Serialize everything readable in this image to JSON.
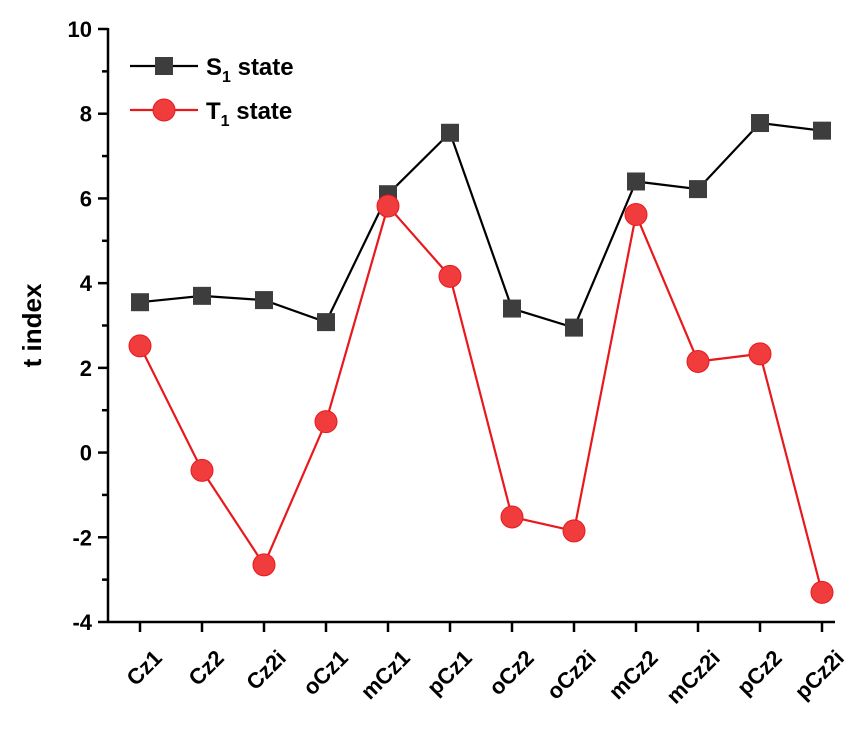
{
  "chart_data": {
    "type": "line",
    "title": "",
    "xlabel": "",
    "ylabel": "t index",
    "ylim": [
      -4,
      10
    ],
    "yticks": [
      "-4",
      "-2",
      "0",
      "2",
      "4",
      "6",
      "8",
      "10"
    ],
    "categories": [
      "Cz1",
      "Cz2",
      "Cz2i",
      "oCz1",
      "mCz1",
      "pCz1",
      "oCz2",
      "oCz2i",
      "mCz2",
      "mCz2i",
      "pCz2",
      "pCz2i"
    ],
    "series": [
      {
        "name_main": "S",
        "name_sub": "1",
        "name_rest": " state",
        "marker": "square",
        "line_color": "#000000",
        "marker_color": "#3d3d3d",
        "values": [
          3.55,
          3.7,
          3.6,
          3.08,
          6.1,
          7.55,
          3.4,
          2.95,
          6.4,
          6.22,
          7.78,
          7.6
        ]
      },
      {
        "name_main": "T",
        "name_sub": "1",
        "name_rest": " state",
        "marker": "circle",
        "line_color": "#e8191c",
        "marker_color": "#f03c3c",
        "values": [
          2.52,
          -0.42,
          -2.65,
          0.73,
          5.82,
          4.16,
          -1.52,
          -1.85,
          5.62,
          2.15,
          2.33,
          -3.3
        ]
      }
    ],
    "legend_position": "top-left",
    "grid": false
  }
}
